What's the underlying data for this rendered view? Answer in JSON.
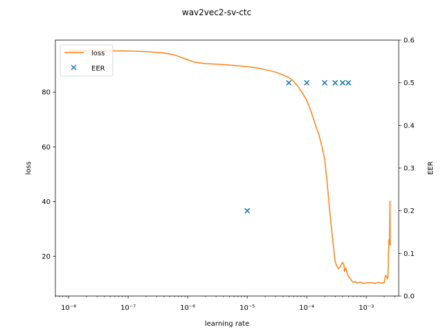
{
  "chart_data": {
    "type": "line",
    "title": "wav2vec2-sv-ctc",
    "xlabel": "learning rate",
    "ylabel": "loss",
    "y2label": "EER",
    "xscale": "log",
    "xlim": [
      6e-09,
      0.0035
    ],
    "ylim": [
      5.5,
      99
    ],
    "y2lim": [
      0,
      0.6
    ],
    "xticks": [
      {
        "value": 1e-08,
        "label": "10⁻⁸"
      },
      {
        "value": 1e-07,
        "label": "10⁻⁷"
      },
      {
        "value": 1e-06,
        "label": "10⁻⁶"
      },
      {
        "value": 1e-05,
        "label": "10⁻⁵"
      },
      {
        "value": 0.0001,
        "label": "10⁻⁴"
      },
      {
        "value": 0.001,
        "label": "10⁻³"
      }
    ],
    "yticks": [
      20,
      40,
      60,
      80
    ],
    "y2ticks": [
      "0.0",
      "0.1",
      "0.2",
      "0.3",
      "0.4",
      "0.5",
      "0.6"
    ],
    "legend_position": "upper-left",
    "grid": false,
    "series": [
      {
        "name": "loss",
        "color": "#ff7f0e",
        "marker": "line",
        "axis": "left",
        "x": [
          1e-08,
          3e-08,
          1e-07,
          2e-07,
          4e-07,
          6e-07,
          8e-07,
          1e-06,
          1.3e-06,
          1.7e-06,
          2e-06,
          3e-06,
          5e-06,
          1e-05,
          1.5e-05,
          2e-05,
          3e-05,
          4e-05,
          5e-05,
          6e-05,
          7e-05,
          8e-05,
          0.0001,
          0.00012,
          0.00014,
          0.00016,
          0.00018,
          0.0002,
          0.00022,
          0.00024,
          0.00026,
          0.00028,
          0.0003,
          0.00032,
          0.00034,
          0.00036,
          0.00038,
          0.0004,
          0.00042,
          0.00043,
          0.00045,
          0.00048,
          0.0005,
          0.00055,
          0.0006,
          0.00065,
          0.0007,
          0.0008,
          0.0009,
          0.001,
          0.0012,
          0.0014,
          0.0016,
          0.0018,
          0.002,
          0.0021,
          0.0022,
          0.0023,
          0.0024,
          0.00245,
          0.0025,
          0.00252,
          0.00255
        ],
        "y": [
          95.2,
          95.1,
          95.0,
          94.8,
          94.3,
          93.6,
          92.6,
          91.8,
          91.0,
          90.6,
          90.4,
          90.2,
          89.9,
          89.3,
          88.8,
          88.2,
          87.3,
          86.3,
          85.3,
          84.0,
          82.3,
          80.5,
          77.0,
          72.5,
          68.0,
          64.5,
          60.0,
          55.5,
          47.0,
          38.0,
          30.0,
          24.0,
          18.0,
          16.5,
          15.5,
          16.0,
          17.0,
          17.8,
          17.0,
          14.5,
          15.8,
          13.5,
          12.8,
          11.5,
          10.5,
          10.8,
          10.2,
          10.6,
          10.1,
          10.3,
          10.4,
          10.1,
          10.5,
          10.2,
          10.4,
          13.0,
          12.5,
          11.8,
          26.0,
          24.5,
          40.2,
          24.0,
          24.0
        ]
      },
      {
        "name": "EER",
        "color": "#1f77b4",
        "marker": "x",
        "axis": "right",
        "x": [
          1e-05,
          5e-05,
          0.0001,
          0.0002,
          0.0003,
          0.0004,
          0.0005
        ],
        "y": [
          0.2,
          0.5,
          0.5,
          0.5,
          0.5,
          0.5,
          0.5
        ]
      }
    ]
  }
}
